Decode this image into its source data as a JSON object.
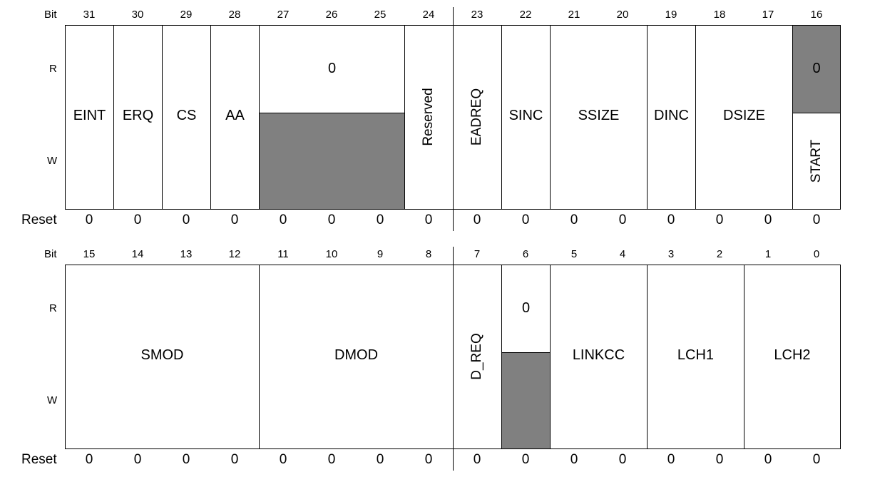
{
  "labels": {
    "bit": "Bit",
    "read": "R",
    "write": "W",
    "reset": "Reset"
  },
  "upper": {
    "bits": [
      "31",
      "30",
      "29",
      "28",
      "27",
      "26",
      "25",
      "24",
      "23",
      "22",
      "21",
      "20",
      "19",
      "18",
      "17",
      "16"
    ],
    "fields": {
      "eint": "EINT",
      "erq": "ERQ",
      "cs": "CS",
      "aa": "AA",
      "reserved_read_value": "0",
      "reserved": "Reserved",
      "eadreq": "EADREQ",
      "sinc": "SINC",
      "ssize": "SSIZE",
      "dinc": "DINC",
      "dsize": "DSIZE",
      "start_read_value": "0",
      "start": "START"
    },
    "reset": [
      "0",
      "0",
      "0",
      "0",
      "0",
      "0",
      "0",
      "0",
      "0",
      "0",
      "0",
      "0",
      "0",
      "0",
      "0",
      "0"
    ]
  },
  "lower": {
    "bits": [
      "15",
      "14",
      "13",
      "12",
      "11",
      "10",
      "9",
      "8",
      "7",
      "6",
      "5",
      "4",
      "3",
      "2",
      "1",
      "0"
    ],
    "fields": {
      "smod": "SMOD",
      "dmod": "DMOD",
      "d_req": "D_REQ",
      "bit6_read_value": "0",
      "linkcc": "LINKCC",
      "lch1": "LCH1",
      "lch2": "LCH2"
    },
    "reset": [
      "0",
      "0",
      "0",
      "0",
      "0",
      "0",
      "0",
      "0",
      "0",
      "0",
      "0",
      "0",
      "0",
      "0",
      "0",
      "0"
    ]
  },
  "colors": {
    "reserved_fill": "#808080",
    "border": "#000000"
  }
}
